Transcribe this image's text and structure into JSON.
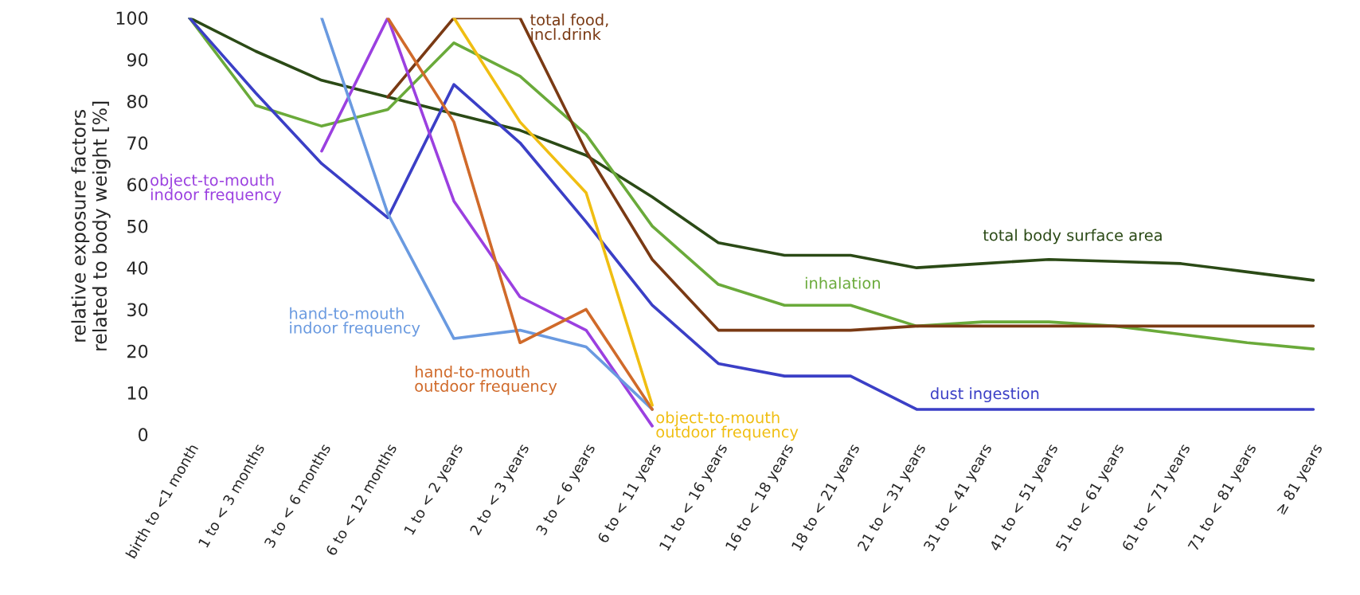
{
  "chart_data": {
    "type": "line",
    "ylabel": "relative exposure factors\nrelated to body weight [%]",
    "categories": [
      "birth to <1 month",
      "1 to < 3 months",
      "3 to < 6 months",
      "6 to < 12 months",
      "1 to < 2 years",
      "2 to < 3 years",
      "3 to < 6 years",
      "6 to < 11 years",
      "11 to < 16 years",
      "16 to < 18 years",
      "18 to < 21 years",
      "21 to < 31 years",
      "31 to < 41 years",
      "41 to < 51 years",
      "51 to < 61 years",
      "61 to < 71 years",
      "71 to < 81 years",
      "≥ 81 years"
    ],
    "series": [
      {
        "name": "total body surface area",
        "color": "#2b4a16",
        "values": [
          100,
          92,
          85,
          81,
          77,
          73,
          67,
          57,
          46,
          43,
          43,
          40,
          41,
          42,
          41.5,
          41,
          39,
          37
        ]
      },
      {
        "name": "inhalation",
        "color": "#6aaa3a",
        "values": [
          100,
          79,
          74,
          78,
          94,
          86,
          72,
          50,
          36,
          31,
          31,
          26,
          27,
          27,
          26,
          24,
          22,
          20.5
        ]
      },
      {
        "name": "dust ingestion",
        "color": "#3b3fc6",
        "values": [
          100,
          82,
          65,
          52,
          84,
          70,
          51,
          31,
          17,
          14,
          14,
          6,
          6,
          6,
          6,
          6,
          6,
          6
        ]
      },
      {
        "name": "total food,\nincl.drink",
        "color": "#7a3a14",
        "values": [
          null,
          null,
          null,
          81,
          100,
          100,
          68,
          42,
          25,
          25,
          25,
          26,
          26,
          26,
          26,
          26,
          26,
          26
        ]
      },
      {
        "name": "object-to-mouth\nindoor frequency",
        "color": "#9b40e0",
        "values": [
          null,
          null,
          68,
          100,
          56,
          33,
          25,
          2,
          null,
          null,
          null,
          null,
          null,
          null,
          null,
          null,
          null,
          null
        ]
      },
      {
        "name": "hand-to-mouth\nindoor frequency",
        "color": "#6a9ae0",
        "values": [
          null,
          null,
          100,
          53,
          23,
          25,
          21,
          6,
          null,
          null,
          null,
          null,
          null,
          null,
          null,
          null,
          null,
          null
        ]
      },
      {
        "name": "hand-to-mouth\noutdoor frequency",
        "color": "#d06a2a",
        "values": [
          null,
          null,
          null,
          100,
          75,
          22,
          30,
          6,
          null,
          null,
          null,
          null,
          null,
          null,
          null,
          null,
          null,
          null
        ]
      },
      {
        "name": "object-to-mouth\noutdoor frequency",
        "color": "#f0be12",
        "values": [
          null,
          null,
          null,
          null,
          100,
          75,
          58,
          7,
          null,
          null,
          null,
          null,
          null,
          null,
          null,
          null,
          null,
          null
        ]
      }
    ],
    "ylim": [
      0,
      100
    ],
    "yticks": [
      0,
      10,
      20,
      30,
      40,
      50,
      60,
      70,
      80,
      90,
      100
    ],
    "grid": false,
    "legend": false
  }
}
